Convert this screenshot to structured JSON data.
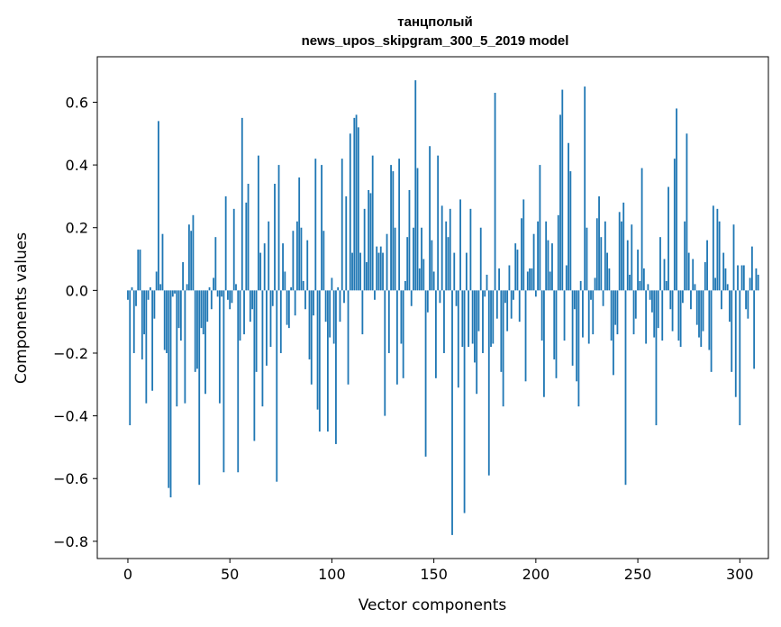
{
  "chart_data": {
    "type": "bar",
    "title_line1": "танцполый",
    "title_line2": "news_upos_skipgram_300_5_2019 model",
    "xlabel": "Vector components",
    "ylabel": "Components values",
    "xlim": [
      -15,
      314
    ],
    "ylim": [
      -0.855,
      0.745
    ],
    "xticks": [
      0,
      50,
      100,
      150,
      200,
      250,
      300
    ],
    "yticks": [
      -0.8,
      -0.6,
      -0.4,
      -0.2,
      0.0,
      0.2,
      0.4,
      0.6
    ],
    "ytick_labels": [
      "−0.8",
      "−0.6",
      "−0.4",
      "−0.2",
      "0.0",
      "0.2",
      "0.4",
      "0.6"
    ],
    "bar_color": "#1f77b4",
    "values": [
      -0.03,
      -0.43,
      0.01,
      -0.2,
      -0.05,
      0.13,
      0.13,
      -0.22,
      -0.14,
      -0.36,
      -0.03,
      0.01,
      -0.32,
      -0.09,
      0.06,
      0.54,
      0.02,
      0.18,
      -0.19,
      -0.2,
      -0.63,
      -0.66,
      -0.02,
      -0.01,
      -0.37,
      -0.12,
      -0.16,
      0.09,
      -0.36,
      0.02,
      0.21,
      0.19,
      0.24,
      -0.26,
      -0.25,
      -0.62,
      -0.12,
      -0.14,
      -0.33,
      -0.1,
      0.01,
      -0.06,
      0.04,
      0.17,
      -0.02,
      -0.36,
      -0.02,
      -0.58,
      0.3,
      -0.03,
      -0.06,
      -0.04,
      0.26,
      0.02,
      -0.58,
      -0.16,
      0.55,
      -0.14,
      0.28,
      0.34,
      -0.1,
      -0.06,
      -0.48,
      -0.26,
      0.43,
      0.12,
      -0.37,
      0.15,
      -0.24,
      0.22,
      -0.18,
      -0.05,
      0.34,
      -0.61,
      0.4,
      -0.2,
      0.15,
      0.06,
      -0.11,
      -0.12,
      0.01,
      0.19,
      -0.08,
      0.22,
      0.36,
      0.2,
      0.03,
      -0.06,
      0.16,
      -0.22,
      -0.3,
      -0.08,
      0.42,
      -0.38,
      -0.45,
      0.4,
      0.19,
      -0.1,
      -0.45,
      -0.15,
      0.04,
      -0.17,
      -0.49,
      0.01,
      -0.1,
      0.42,
      -0.04,
      0.3,
      -0.3,
      0.5,
      0.12,
      0.55,
      0.56,
      0.52,
      0.12,
      -0.14,
      0.26,
      0.09,
      0.32,
      0.31,
      0.43,
      -0.03,
      0.14,
      0.12,
      0.14,
      0.12,
      -0.4,
      0.18,
      -0.2,
      0.4,
      0.38,
      0.2,
      -0.3,
      0.42,
      -0.17,
      -0.28,
      0.03,
      0.17,
      0.32,
      -0.05,
      0.2,
      0.67,
      0.39,
      0.07,
      0.2,
      0.1,
      -0.53,
      -0.07,
      0.46,
      0.16,
      0.06,
      -0.28,
      0.43,
      -0.04,
      0.27,
      -0.2,
      0.22,
      0.17,
      0.26,
      -0.78,
      0.12,
      -0.05,
      -0.31,
      0.29,
      -0.18,
      -0.71,
      0.12,
      -0.18,
      0.26,
      -0.17,
      -0.23,
      -0.33,
      -0.13,
      0.2,
      -0.2,
      -0.02,
      0.05,
      -0.59,
      -0.18,
      -0.17,
      0.63,
      -0.09,
      0.07,
      -0.26,
      -0.37,
      -0.04,
      -0.13,
      0.08,
      -0.09,
      -0.03,
      0.15,
      0.13,
      -0.1,
      0.23,
      0.29,
      -0.29,
      0.06,
      0.07,
      0.07,
      0.18,
      -0.02,
      0.22,
      0.4,
      -0.16,
      -0.34,
      0.22,
      0.16,
      0.06,
      0.15,
      -0.22,
      -0.28,
      0.24,
      0.56,
      0.64,
      -0.16,
      0.08,
      0.47,
      0.38,
      -0.24,
      -0.06,
      -0.29,
      -0.37,
      0.03,
      -0.15,
      0.65,
      0.2,
      -0.17,
      -0.03,
      -0.14,
      0.04,
      0.23,
      0.3,
      0.17,
      -0.05,
      0.22,
      0.12,
      0.07,
      -0.16,
      -0.27,
      -0.11,
      -0.14,
      0.25,
      0.22,
      0.28,
      -0.62,
      0.16,
      0.05,
      0.21,
      -0.14,
      -0.09,
      0.13,
      0.03,
      0.39,
      0.07,
      -0.17,
      0.02,
      -0.03,
      -0.07,
      -0.15,
      -0.43,
      -0.12,
      0.17,
      -0.16,
      0.1,
      0.03,
      0.33,
      -0.06,
      -0.13,
      0.42,
      0.58,
      -0.16,
      -0.18,
      -0.04,
      0.22,
      0.5,
      0.12,
      -0.06,
      0.1,
      0.02,
      -0.11,
      -0.15,
      -0.18,
      -0.13,
      0.09,
      0.16,
      -0.19,
      -0.26,
      0.27,
      0.04,
      0.26,
      0.22,
      -0.06,
      0.12,
      0.07,
      0.02,
      -0.1,
      -0.26,
      0.21,
      -0.34,
      0.08,
      -0.43,
      0.08,
      0.08,
      -0.06,
      -0.09,
      0.04,
      0.14,
      -0.25,
      0.07,
      0.05
    ]
  }
}
